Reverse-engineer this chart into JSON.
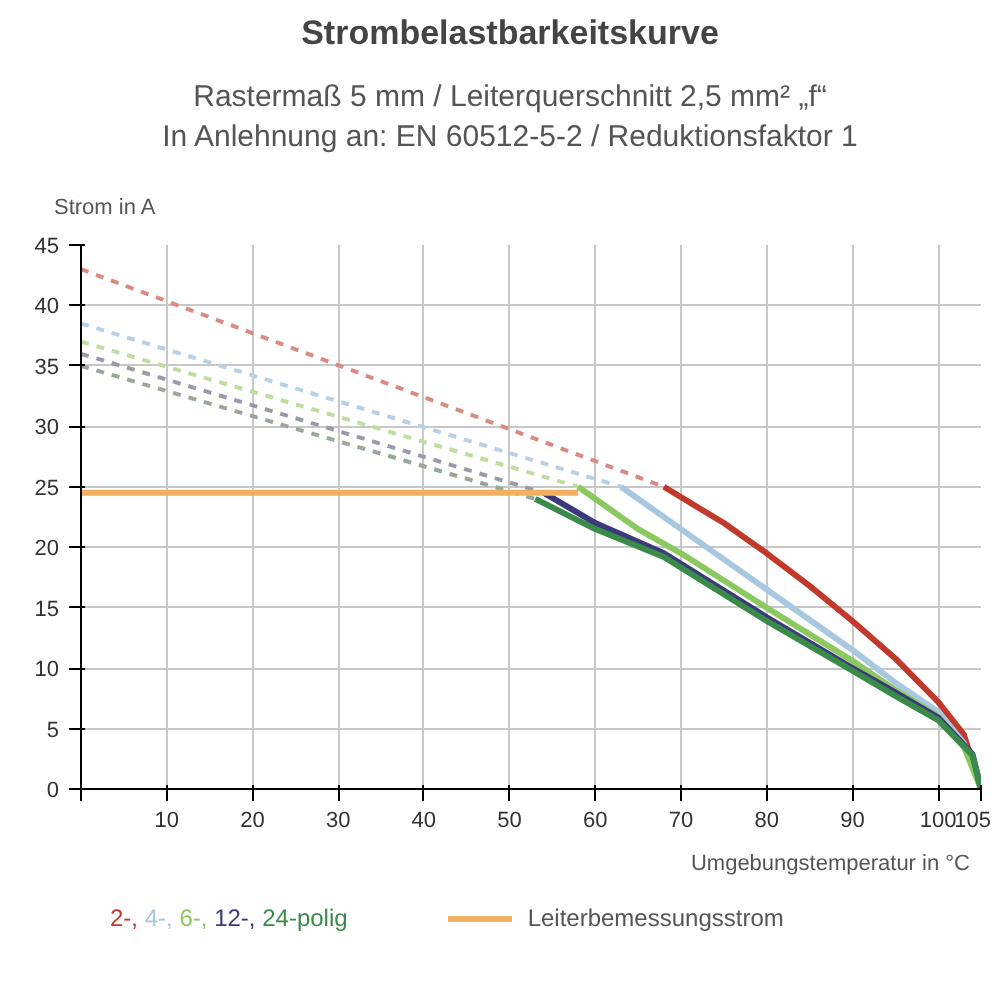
{
  "chart_data": {
    "type": "line",
    "title": "Strombelastbarkeitskurve",
    "subtitle": "Rastermaß 5 mm / Leiterquerschnitt 2,5 mm² „f“\nIn Anlehnung an: EN 60512-5-2 / Reduktionsfaktor 1",
    "xlabel": "Umgebungstemperatur in °C",
    "ylabel": "Strom in A",
    "xlim": [
      0,
      105
    ],
    "ylim": [
      0,
      45
    ],
    "xticks": [
      {
        "value": 0,
        "label": null
      },
      10,
      20,
      30,
      40,
      50,
      60,
      70,
      80,
      90,
      100,
      105
    ],
    "yticks": [
      0,
      5,
      10,
      15,
      20,
      25,
      30,
      35,
      40,
      45
    ],
    "grid": true,
    "legend": "bottom",
    "marker": "none",
    "series": [
      {
        "color": "#d98b80",
        "line_style": "dashed",
        "x": [
          0,
          68
        ],
        "values": [
          43,
          25
        ]
      },
      {
        "color": "#b8d0e4",
        "line_style": "dashed",
        "x": [
          0,
          63
        ],
        "values": [
          38.5,
          25
        ]
      },
      {
        "color": "#c0dca0",
        "line_style": "dashed",
        "x": [
          0,
          58
        ],
        "values": [
          37,
          25
        ]
      },
      {
        "color": "#9a9aa8",
        "line_style": "dashed",
        "x": [
          0,
          54
        ],
        "values": [
          36,
          24.5
        ]
      },
      {
        "color": "#9aa89a",
        "line_style": "dashed",
        "x": [
          0,
          53
        ],
        "values": [
          35,
          24
        ]
      },
      {
        "name": "2-,",
        "color": "#c0392b",
        "line_style": "solid",
        "x": [
          68,
          75,
          80,
          85,
          90,
          95,
          100,
          103,
          105
        ],
        "values": [
          25,
          22,
          19.5,
          16.8,
          13.9,
          10.8,
          7.2,
          4.5,
          0
        ]
      },
      {
        "name": "4-,",
        "color": "#a8c8e0",
        "line_style": "solid",
        "x": [
          63,
          70,
          80,
          90,
          95,
          100,
          103,
          105
        ],
        "values": [
          25,
          21.5,
          16.5,
          11.5,
          8.8,
          6.4,
          3.8,
          0
        ]
      },
      {
        "name": "6-,",
        "color": "#8cc860",
        "line_style": "solid",
        "x": [
          58,
          65,
          70,
          80,
          90,
          95,
          100,
          103,
          105
        ],
        "values": [
          25,
          21.5,
          19.5,
          15,
          10.6,
          8.2,
          6,
          3.5,
          0
        ]
      },
      {
        "name": "12-,",
        "color": "#3a3a7a",
        "line_style": "solid",
        "x": [
          54,
          60,
          68,
          80,
          90,
          95,
          100,
          104,
          105
        ],
        "values": [
          24.5,
          22,
          19.5,
          14.2,
          10,
          8,
          5.9,
          2.9,
          0
        ]
      },
      {
        "name": "24-polig",
        "color": "#3a8a4a",
        "line_style": "solid",
        "x": [
          53,
          60,
          68,
          80,
          90,
          95,
          100,
          104,
          105
        ],
        "values": [
          24,
          21.5,
          19.2,
          13.9,
          9.8,
          7.7,
          5.7,
          2.8,
          0
        ]
      },
      {
        "name": "Leiterbemessungsstrom",
        "color": "#f0b060",
        "line_style": "solid",
        "x": [
          0,
          58
        ],
        "values": [
          24.5,
          24.5
        ]
      }
    ]
  }
}
